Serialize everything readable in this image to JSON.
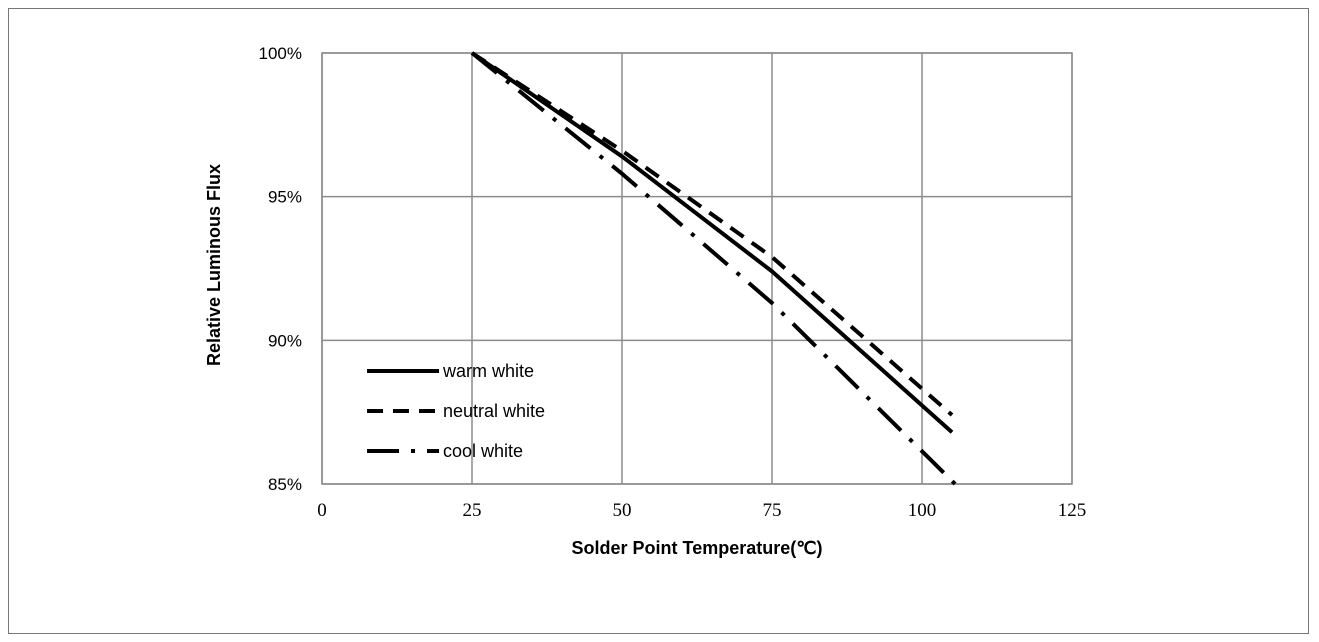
{
  "chart_data": {
    "type": "line",
    "xlabel": "Solder Point Temperature(℃)",
    "ylabel": "Relative Luminous Flux",
    "xlim": [
      0,
      125
    ],
    "ylim": [
      85,
      100
    ],
    "x_ticks": [
      "0",
      "25",
      "50",
      "75",
      "100",
      "125"
    ],
    "y_ticks": [
      "100%",
      "95%",
      "90%",
      "85%"
    ],
    "grid": true,
    "legend_position": "bottom-left",
    "series": [
      {
        "name": "warm white",
        "style": "solid",
        "x": [
          25,
          50,
          75,
          105
        ],
        "y": [
          100,
          96.4,
          92.4,
          86.8
        ]
      },
      {
        "name": "neutral white",
        "style": "dashed",
        "x": [
          25,
          50,
          75,
          105
        ],
        "y": [
          100,
          96.6,
          92.9,
          87.4
        ]
      },
      {
        "name": "cool white",
        "style": "long-dash-dot",
        "x": [
          25,
          50,
          75,
          106
        ],
        "y": [
          100,
          95.8,
          91.3,
          84.9
        ]
      }
    ]
  }
}
